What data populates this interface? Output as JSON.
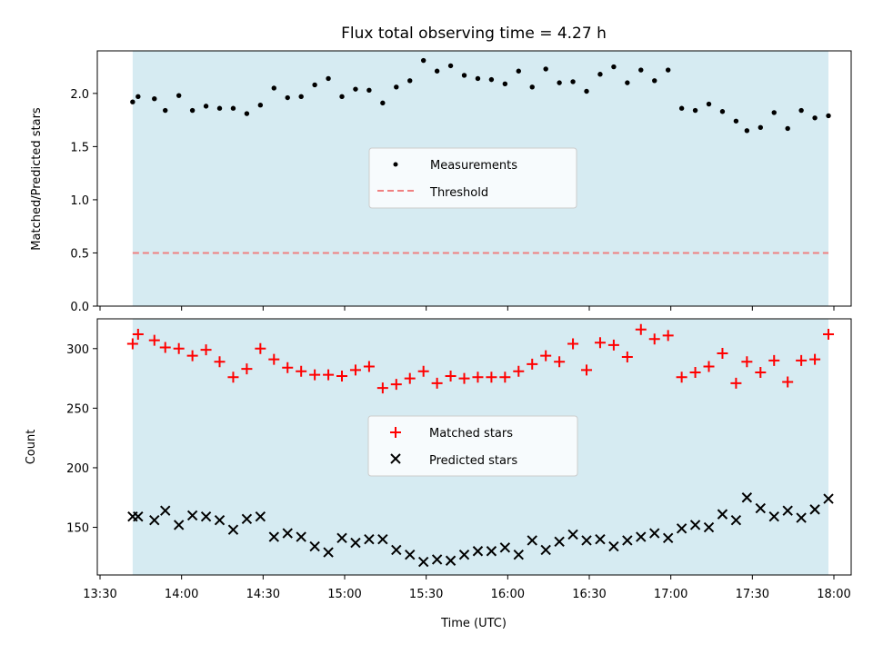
{
  "title": "Flux total observing time = 4.27 h",
  "chart_data": [
    {
      "type": "scatter",
      "ylabel": "Matched/Predicted stars",
      "xlabel": "",
      "xlim": [
        "13:30",
        "18:00"
      ],
      "ylim": [
        0,
        2.4
      ],
      "yticks": [
        0.0,
        0.5,
        1.0,
        1.5,
        2.0
      ],
      "ytick_labels": [
        "0.0",
        "0.5",
        "1.0",
        "1.5",
        "2.0"
      ],
      "shaded_span": {
        "start": "13:42",
        "end": "17:58",
        "color": "#add8e6"
      },
      "threshold": {
        "name": "Threshold",
        "value": 0.5,
        "color": "#f08080",
        "style": "dashed"
      },
      "legend": {
        "placement": "center",
        "entries": [
          "Measurements",
          "Threshold"
        ]
      },
      "series": [
        {
          "name": "Measurements",
          "color": "#000000",
          "marker": "dot",
          "x": [
            "13:42",
            "13:44",
            "13:50",
            "13:54",
            "13:59",
            "14:04",
            "14:09",
            "14:14",
            "14:19",
            "14:24",
            "14:29",
            "14:34",
            "14:39",
            "14:44",
            "14:49",
            "14:54",
            "14:59",
            "15:04",
            "15:09",
            "15:14",
            "15:19",
            "15:24",
            "15:29",
            "15:34",
            "15:39",
            "15:44",
            "15:49",
            "15:54",
            "15:59",
            "16:04",
            "16:09",
            "16:14",
            "16:19",
            "16:24",
            "16:29",
            "16:34",
            "16:39",
            "16:44",
            "16:49",
            "16:54",
            "16:59",
            "17:04",
            "17:09",
            "17:14",
            "17:19",
            "17:24",
            "17:28",
            "17:33",
            "17:38",
            "17:43",
            "17:48",
            "17:53",
            "17:58"
          ],
          "y": [
            1.92,
            1.97,
            1.95,
            1.84,
            1.98,
            1.84,
            1.88,
            1.86,
            1.86,
            1.81,
            1.89,
            2.05,
            1.96,
            1.97,
            2.08,
            2.14,
            1.97,
            2.04,
            2.03,
            1.91,
            2.06,
            2.12,
            2.31,
            2.21,
            2.26,
            2.17,
            2.14,
            2.13,
            2.09,
            2.21,
            2.06,
            2.23,
            2.1,
            2.11,
            2.02,
            2.18,
            2.25,
            2.1,
            2.22,
            2.12,
            2.22,
            1.86,
            1.84,
            1.9,
            1.83,
            1.74,
            1.65,
            1.68,
            1.82,
            1.67,
            1.84,
            1.77,
            1.79
          ]
        }
      ]
    },
    {
      "type": "scatter",
      "ylabel": "Count",
      "xlabel": "Time (UTC)",
      "xlim": [
        "13:30",
        "18:00"
      ],
      "ylim": [
        110,
        325
      ],
      "yticks": [
        150,
        200,
        250,
        300
      ],
      "ytick_labels": [
        "150",
        "200",
        "250",
        "300"
      ],
      "xticks": [
        "13:30",
        "14:00",
        "14:30",
        "15:00",
        "15:30",
        "16:00",
        "16:30",
        "17:00",
        "17:30",
        "18:00"
      ],
      "shaded_span": {
        "start": "13:42",
        "end": "17:58",
        "color": "#add8e6"
      },
      "legend": {
        "placement": "center",
        "entries": [
          "Matched stars",
          "Predicted stars"
        ]
      },
      "series": [
        {
          "name": "Matched stars",
          "color": "#ff0000",
          "marker": "plus",
          "x": [
            "13:42",
            "13:44",
            "13:50",
            "13:54",
            "13:59",
            "14:04",
            "14:09",
            "14:14",
            "14:19",
            "14:24",
            "14:29",
            "14:34",
            "14:39",
            "14:44",
            "14:49",
            "14:54",
            "14:59",
            "15:04",
            "15:09",
            "15:14",
            "15:19",
            "15:24",
            "15:29",
            "15:34",
            "15:39",
            "15:44",
            "15:49",
            "15:54",
            "15:59",
            "16:04",
            "16:09",
            "16:14",
            "16:19",
            "16:24",
            "16:29",
            "16:34",
            "16:39",
            "16:44",
            "16:49",
            "16:54",
            "16:59",
            "17:04",
            "17:09",
            "17:14",
            "17:19",
            "17:24",
            "17:28",
            "17:33",
            "17:38",
            "17:43",
            "17:48",
            "17:53",
            "17:58"
          ],
          "y": [
            304,
            312,
            307,
            301,
            300,
            294,
            299,
            289,
            276,
            283,
            300,
            291,
            284,
            281,
            278,
            278,
            277,
            282,
            285,
            267,
            270,
            275,
            281,
            271,
            277,
            275,
            276,
            276,
            276,
            281,
            287,
            294,
            289,
            304,
            282,
            305,
            303,
            293,
            316,
            308,
            311,
            276,
            280,
            285,
            296,
            271,
            289,
            280,
            290,
            272,
            290,
            291,
            312
          ]
        },
        {
          "name": "Predicted stars",
          "color": "#000000",
          "marker": "x",
          "x": [
            "13:42",
            "13:44",
            "13:50",
            "13:54",
            "13:59",
            "14:04",
            "14:09",
            "14:14",
            "14:19",
            "14:24",
            "14:29",
            "14:34",
            "14:39",
            "14:44",
            "14:49",
            "14:54",
            "14:59",
            "15:04",
            "15:09",
            "15:14",
            "15:19",
            "15:24",
            "15:29",
            "15:34",
            "15:39",
            "15:44",
            "15:49",
            "15:54",
            "15:59",
            "16:04",
            "16:09",
            "16:14",
            "16:19",
            "16:24",
            "16:29",
            "16:34",
            "16:39",
            "16:44",
            "16:49",
            "16:54",
            "16:59",
            "17:04",
            "17:09",
            "17:14",
            "17:19",
            "17:24",
            "17:28",
            "17:33",
            "17:38",
            "17:43",
            "17:48",
            "17:53",
            "17:58"
          ],
          "y": [
            159,
            159,
            156,
            164,
            152,
            160,
            159,
            156,
            148,
            157,
            159,
            142,
            145,
            142,
            134,
            129,
            141,
            137,
            140,
            140,
            131,
            127,
            121,
            123,
            122,
            127,
            130,
            130,
            133,
            127,
            139,
            131,
            138,
            144,
            139,
            140,
            134,
            139,
            142,
            145,
            141,
            149,
            152,
            150,
            161,
            156,
            175,
            166,
            159,
            164,
            158,
            165,
            174
          ]
        }
      ]
    }
  ]
}
